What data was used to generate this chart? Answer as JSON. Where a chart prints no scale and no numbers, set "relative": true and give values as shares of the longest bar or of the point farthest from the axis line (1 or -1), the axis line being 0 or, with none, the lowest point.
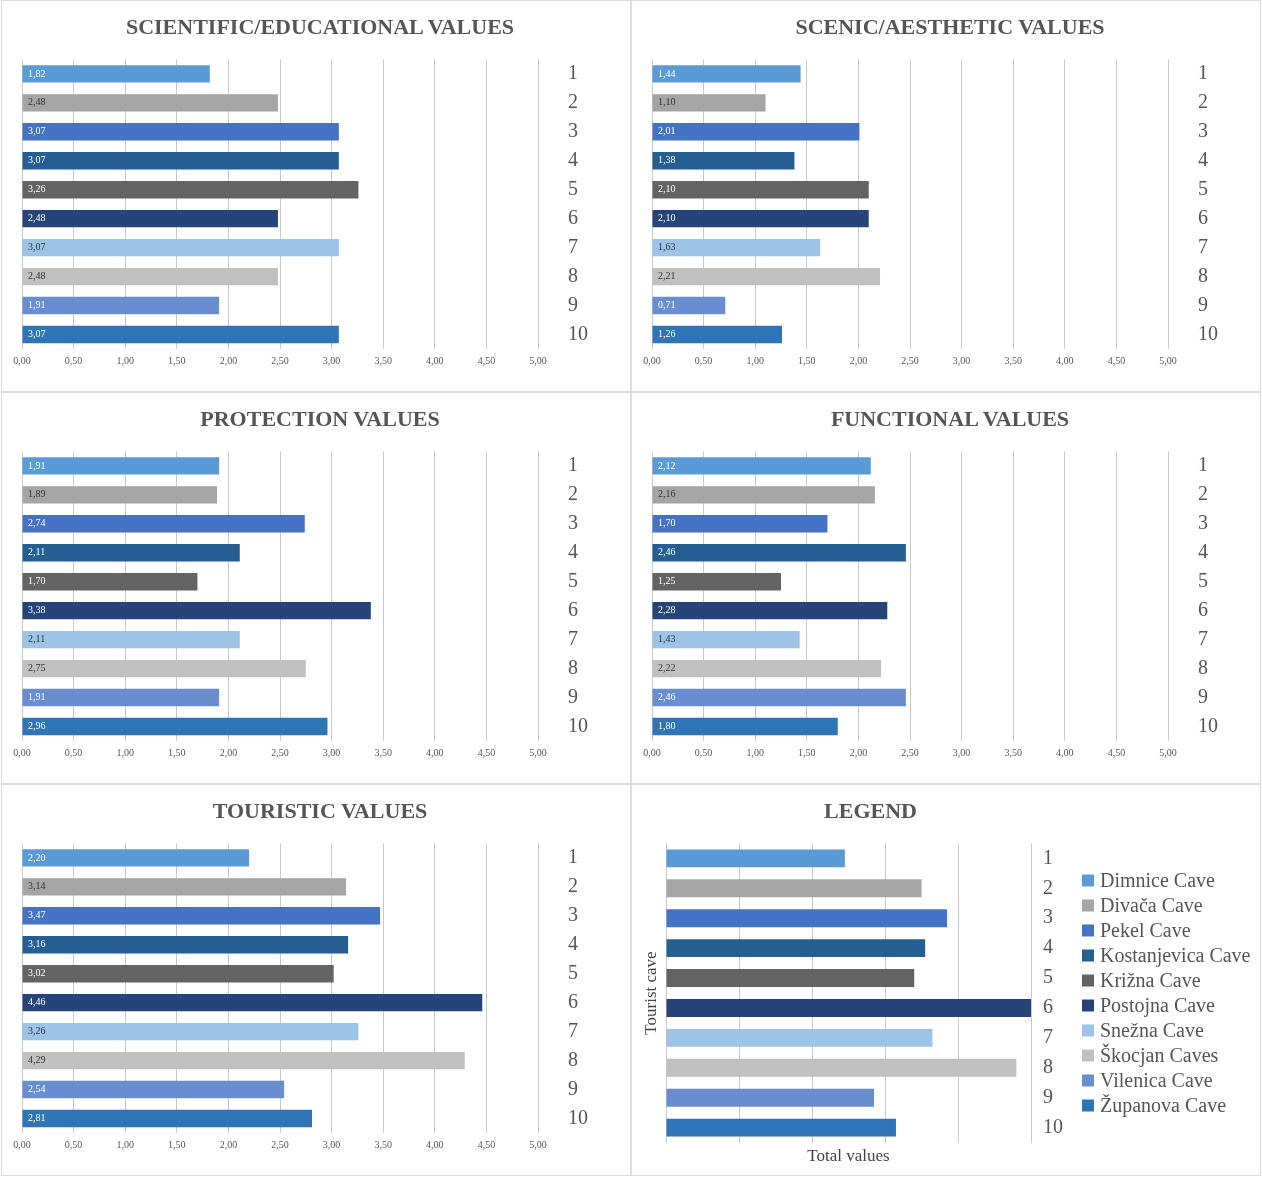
{
  "chart_data": [
    {
      "type": "bar",
      "orientation": "horizontal",
      "title": "SCIENTIFIC/EDUCATIONAL VALUES",
      "categories": [
        "1",
        "2",
        "3",
        "4",
        "5",
        "6",
        "7",
        "8",
        "9",
        "10"
      ],
      "values": [
        1.82,
        2.48,
        3.07,
        3.07,
        3.26,
        2.48,
        3.07,
        2.48,
        1.91,
        3.07
      ],
      "value_labels": [
        "1,82",
        "2,48",
        "3,07",
        "3,07",
        "3,26",
        "2,48",
        "3,07",
        "2,48",
        "1,91",
        "3,07"
      ],
      "colors": [
        "#5b9bd5",
        "#a5a5a5",
        "#4472c4",
        "#255e91",
        "#636363",
        "#264478",
        "#9dc3e6",
        "#c0c0c0",
        "#698ed0",
        "#2e75b6"
      ],
      "xlim": [
        0,
        5
      ],
      "xticks": [
        {
          "value": 0,
          "label": "0,00"
        },
        {
          "value": 0.5,
          "label": "0,50"
        },
        {
          "value": 1,
          "label": "1,00"
        },
        {
          "value": 1.5,
          "label": "1,50"
        },
        {
          "value": 2,
          "label": "2,00"
        },
        {
          "value": 2.5,
          "label": "2,50"
        },
        {
          "value": 3,
          "label": "3,00"
        },
        {
          "value": 3.5,
          "label": "3,50"
        },
        {
          "value": 4,
          "label": "4,00"
        },
        {
          "value": 4.5,
          "label": "4,50"
        },
        {
          "value": 5,
          "label": "5,00"
        }
      ],
      "grid": "x",
      "legend": false
    },
    {
      "type": "bar",
      "orientation": "horizontal",
      "title": "SCENIC/AESTHETIC VALUES",
      "categories": [
        "1",
        "2",
        "3",
        "4",
        "5",
        "6",
        "7",
        "8",
        "9",
        "10"
      ],
      "values": [
        1.44,
        1.1,
        2.01,
        1.38,
        2.1,
        2.1,
        1.63,
        2.21,
        0.71,
        1.26
      ],
      "value_labels": [
        "1,44",
        "1,10",
        "2,01",
        "1,38",
        "2,10",
        "2,10",
        "1,63",
        "2,21",
        "0,71",
        "1,26"
      ],
      "colors": [
        "#5b9bd5",
        "#a5a5a5",
        "#4472c4",
        "#255e91",
        "#636363",
        "#264478",
        "#9dc3e6",
        "#c0c0c0",
        "#698ed0",
        "#2e75b6"
      ],
      "xlim": [
        0,
        5
      ],
      "xticks": [
        {
          "value": 0,
          "label": "0,00"
        },
        {
          "value": 0.5,
          "label": "0,50"
        },
        {
          "value": 1,
          "label": "1,00"
        },
        {
          "value": 1.5,
          "label": "1,50"
        },
        {
          "value": 2,
          "label": "2,00"
        },
        {
          "value": 2.5,
          "label": "2,50"
        },
        {
          "value": 3,
          "label": "3,00"
        },
        {
          "value": 3.5,
          "label": "3,50"
        },
        {
          "value": 4,
          "label": "4,00"
        },
        {
          "value": 4.5,
          "label": "4,50"
        },
        {
          "value": 5,
          "label": "5,00"
        }
      ],
      "grid": "x",
      "legend": false
    },
    {
      "type": "bar",
      "orientation": "horizontal",
      "title": "PROTECTION VALUES",
      "categories": [
        "1",
        "2",
        "3",
        "4",
        "5",
        "6",
        "7",
        "8",
        "9",
        "10"
      ],
      "values": [
        1.91,
        1.89,
        2.74,
        2.11,
        1.7,
        3.38,
        2.11,
        2.75,
        1.91,
        2.96
      ],
      "value_labels": [
        "1,91",
        "1,89",
        "2,74",
        "2,11",
        "1,70",
        "3,38",
        "2,11",
        "2,75",
        "1,91",
        "2,96"
      ],
      "colors": [
        "#5b9bd5",
        "#a5a5a5",
        "#4472c4",
        "#255e91",
        "#636363",
        "#264478",
        "#9dc3e6",
        "#c0c0c0",
        "#698ed0",
        "#2e75b6"
      ],
      "xlim": [
        0,
        5
      ],
      "xticks": [
        {
          "value": 0,
          "label": "0,00"
        },
        {
          "value": 0.5,
          "label": "0,50"
        },
        {
          "value": 1,
          "label": "1,00"
        },
        {
          "value": 1.5,
          "label": "1,50"
        },
        {
          "value": 2,
          "label": "2,00"
        },
        {
          "value": 2.5,
          "label": "2,50"
        },
        {
          "value": 3,
          "label": "3,00"
        },
        {
          "value": 3.5,
          "label": "3,50"
        },
        {
          "value": 4,
          "label": "4,00"
        },
        {
          "value": 4.5,
          "label": "4,50"
        },
        {
          "value": 5,
          "label": "5,00"
        }
      ],
      "grid": "x",
      "legend": false
    },
    {
      "type": "bar",
      "orientation": "horizontal",
      "title": "FUNCTIONAL VALUES",
      "categories": [
        "1",
        "2",
        "3",
        "4",
        "5",
        "6",
        "7",
        "8",
        "9",
        "10"
      ],
      "values": [
        2.12,
        2.16,
        1.7,
        2.46,
        1.25,
        2.28,
        1.43,
        2.22,
        2.46,
        1.8
      ],
      "value_labels": [
        "2,12",
        "2,16",
        "1,70",
        "2,46",
        "1,25",
        "2,28",
        "1,43",
        "2,22",
        "2,46",
        "1,80"
      ],
      "colors": [
        "#5b9bd5",
        "#a5a5a5",
        "#4472c4",
        "#255e91",
        "#636363",
        "#264478",
        "#9dc3e6",
        "#c0c0c0",
        "#698ed0",
        "#2e75b6"
      ],
      "xlim": [
        0,
        5
      ],
      "xticks": [
        {
          "value": 0,
          "label": "0,00"
        },
        {
          "value": 0.5,
          "label": "0,50"
        },
        {
          "value": 1,
          "label": "1,00"
        },
        {
          "value": 1.5,
          "label": "1,50"
        },
        {
          "value": 2,
          "label": "2,00"
        },
        {
          "value": 2.5,
          "label": "2,50"
        },
        {
          "value": 3,
          "label": "3,00"
        },
        {
          "value": 3.5,
          "label": "3,50"
        },
        {
          "value": 4,
          "label": "4,00"
        },
        {
          "value": 4.5,
          "label": "4,50"
        },
        {
          "value": 5,
          "label": "5,00"
        }
      ],
      "grid": "x",
      "legend": false
    },
    {
      "type": "bar",
      "orientation": "horizontal",
      "title": "TOURISTIC VALUES",
      "categories": [
        "1",
        "2",
        "3",
        "4",
        "5",
        "6",
        "7",
        "8",
        "9",
        "10"
      ],
      "values": [
        2.2,
        3.14,
        3.47,
        3.16,
        3.02,
        4.46,
        3.26,
        4.29,
        2.54,
        2.81
      ],
      "value_labels": [
        "2,20",
        "3,14",
        "3,47",
        "3,16",
        "3,02",
        "4,46",
        "3,26",
        "4,29",
        "2,54",
        "2,81"
      ],
      "colors": [
        "#5b9bd5",
        "#a5a5a5",
        "#4472c4",
        "#255e91",
        "#636363",
        "#264478",
        "#9dc3e6",
        "#c0c0c0",
        "#698ed0",
        "#2e75b6"
      ],
      "xlim": [
        0,
        5
      ],
      "xticks": [
        {
          "value": 0,
          "label": "0,00"
        },
        {
          "value": 0.5,
          "label": "0,50"
        },
        {
          "value": 1,
          "label": "1,00"
        },
        {
          "value": 1.5,
          "label": "1,50"
        },
        {
          "value": 2,
          "label": "2,00"
        },
        {
          "value": 2.5,
          "label": "2,50"
        },
        {
          "value": 3,
          "label": "3,00"
        },
        {
          "value": 3.5,
          "label": "3,50"
        },
        {
          "value": 4,
          "label": "4,00"
        },
        {
          "value": 4.5,
          "label": "4,50"
        },
        {
          "value": 5,
          "label": "5,00"
        }
      ],
      "grid": "x",
      "legend": false
    },
    {
      "type": "bar",
      "orientation": "horizontal",
      "stacked": true,
      "relative": true,
      "title": "LEGEND",
      "xlabel": "Total values",
      "ylabel": "Tourist cave",
      "categories": [
        "1",
        "2",
        "3",
        "4",
        "5",
        "6",
        "7",
        "8",
        "9",
        "10"
      ],
      "series": [
        {
          "name": "Dimnice Cave",
          "color": "#5b9bd5",
          "values": [
            0.49,
            null,
            null,
            null,
            null,
            null,
            null,
            null,
            null,
            null
          ]
        },
        {
          "name": "Divača Cave",
          "color": "#a5a5a5",
          "values": [
            null,
            0.7,
            null,
            null,
            null,
            null,
            null,
            null,
            null,
            null
          ]
        },
        {
          "name": "Pekel Cave",
          "color": "#4472c4",
          "values": [
            null,
            null,
            0.77,
            null,
            null,
            null,
            null,
            null,
            null,
            null
          ]
        },
        {
          "name": "Kostanjevica Cave",
          "color": "#255e91",
          "values": [
            null,
            null,
            null,
            0.71,
            null,
            null,
            null,
            null,
            null,
            null
          ]
        },
        {
          "name": "Križna Cave",
          "color": "#636363",
          "values": [
            null,
            null,
            null,
            null,
            0.68,
            null,
            null,
            null,
            null,
            null
          ]
        },
        {
          "name": "Postojna Cave",
          "color": "#264478",
          "values": [
            null,
            null,
            null,
            null,
            null,
            1,
            null,
            null,
            null,
            null
          ]
        },
        {
          "name": "Snežna Cave",
          "color": "#9dc3e6",
          "values": [
            null,
            null,
            null,
            null,
            null,
            null,
            0.73,
            null,
            null,
            null
          ]
        },
        {
          "name": "Škocjan Caves",
          "color": "#c0c0c0",
          "values": [
            null,
            null,
            null,
            null,
            null,
            null,
            null,
            0.96,
            null,
            null
          ]
        },
        {
          "name": "Vilenica Cave",
          "color": "#698ed0",
          "values": [
            null,
            null,
            null,
            null,
            null,
            null,
            null,
            null,
            0.57,
            null
          ]
        },
        {
          "name": "Županova Cave",
          "color": "#2e75b6",
          "values": [
            null,
            null,
            null,
            null,
            null,
            null,
            null,
            null,
            null,
            0.63
          ]
        }
      ],
      "grid": "x",
      "legend": "right"
    }
  ]
}
